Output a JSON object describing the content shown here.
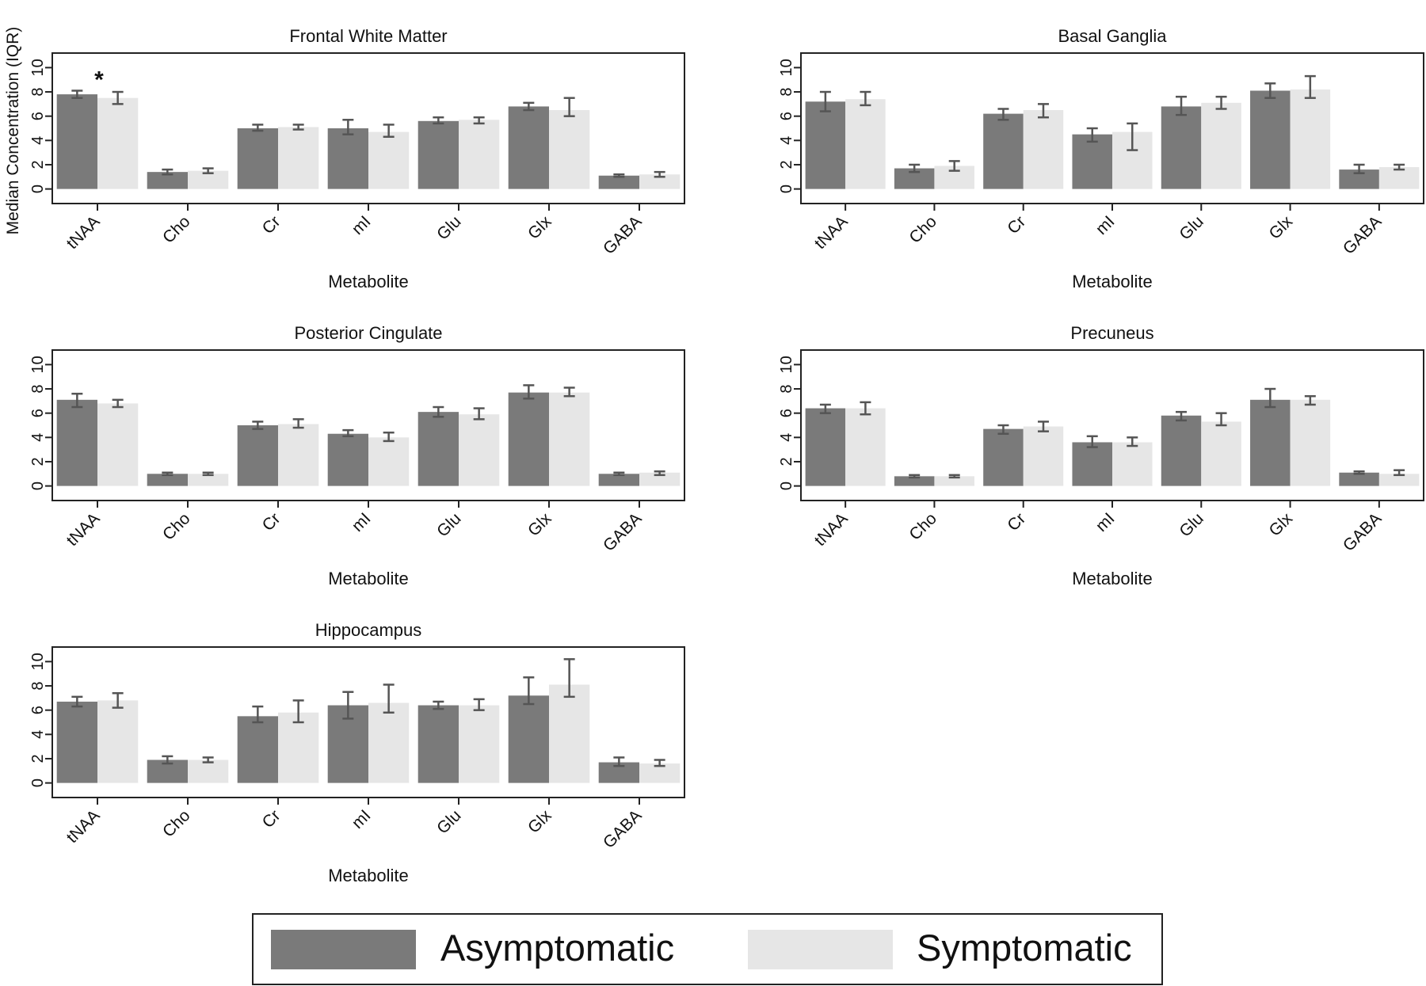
{
  "y_axis_label": "Median Concentration (IQR)",
  "colors": {
    "asymptomatic": "#7a7a7a",
    "symptomatic": "#e6e6e6",
    "errorbar": "#555555",
    "axis": "#222222"
  },
  "legend": {
    "asymptomatic": "Asymptomatic",
    "symptomatic": "Symptomatic"
  },
  "chart_data": [
    {
      "type": "bar",
      "title": "Frontal White Matter",
      "xlabel": "Metabolite",
      "ylabel": "Median Concentration (IQR)",
      "categories": [
        "tNAA",
        "Cho",
        "Cr",
        "mI",
        "Glu",
        "Glx",
        "GABA"
      ],
      "yticks": [
        "0",
        "2",
        "4",
        "6",
        "8",
        "10"
      ],
      "ylim": [
        -1.2,
        11.2
      ],
      "annotations": [
        {
          "category": "tNAA",
          "text": "*"
        }
      ],
      "series": [
        {
          "name": "Asymptomatic",
          "values": [
            7.8,
            1.4,
            5.0,
            5.0,
            5.6,
            6.8,
            1.1
          ],
          "err_low": [
            7.5,
            1.2,
            4.8,
            4.5,
            5.4,
            6.5,
            1.0
          ],
          "err_high": [
            8.1,
            1.6,
            5.3,
            5.7,
            5.9,
            7.1,
            1.2
          ]
        },
        {
          "name": "Symptomatic",
          "values": [
            7.5,
            1.5,
            5.1,
            4.7,
            5.7,
            6.5,
            1.2
          ],
          "err_low": [
            7.0,
            1.3,
            4.9,
            4.3,
            5.4,
            6.0,
            1.0
          ],
          "err_high": [
            8.0,
            1.7,
            5.3,
            5.3,
            5.9,
            7.5,
            1.4
          ]
        }
      ]
    },
    {
      "type": "bar",
      "title": "Basal Ganglia",
      "xlabel": "Metabolite",
      "ylabel": "",
      "categories": [
        "tNAA",
        "Cho",
        "Cr",
        "mI",
        "Glu",
        "Glx",
        "GABA"
      ],
      "yticks": [
        "0",
        "2",
        "4",
        "6",
        "8",
        "10"
      ],
      "ylim": [
        -1.2,
        11.2
      ],
      "series": [
        {
          "name": "Asymptomatic",
          "values": [
            7.2,
            1.7,
            6.2,
            4.5,
            6.8,
            8.1,
            1.6
          ],
          "err_low": [
            6.4,
            1.4,
            5.7,
            3.9,
            6.1,
            7.5,
            1.3
          ],
          "err_high": [
            8.0,
            2.0,
            6.6,
            5.0,
            7.6,
            8.7,
            2.0
          ]
        },
        {
          "name": "Symptomatic",
          "values": [
            7.4,
            1.9,
            6.5,
            4.7,
            7.1,
            8.2,
            1.8
          ],
          "err_low": [
            6.9,
            1.5,
            5.9,
            3.2,
            6.6,
            7.5,
            1.6
          ],
          "err_high": [
            8.0,
            2.3,
            7.0,
            5.4,
            7.6,
            9.3,
            2.0
          ]
        }
      ]
    },
    {
      "type": "bar",
      "title": "Posterior Cingulate",
      "xlabel": "Metabolite",
      "ylabel": "",
      "categories": [
        "tNAA",
        "Cho",
        "Cr",
        "mI",
        "Glu",
        "Glx",
        "GABA"
      ],
      "yticks": [
        "0",
        "2",
        "4",
        "6",
        "8",
        "10"
      ],
      "ylim": [
        -1.2,
        11.2
      ],
      "series": [
        {
          "name": "Asymptomatic",
          "values": [
            7.1,
            1.0,
            5.0,
            4.3,
            6.1,
            7.7,
            1.0
          ],
          "err_low": [
            6.5,
            0.9,
            4.7,
            4.1,
            5.7,
            7.2,
            0.9
          ],
          "err_high": [
            7.6,
            1.1,
            5.3,
            4.6,
            6.5,
            8.3,
            1.1
          ]
        },
        {
          "name": "Symptomatic",
          "values": [
            6.8,
            1.0,
            5.1,
            4.0,
            5.9,
            7.7,
            1.1
          ],
          "err_low": [
            6.5,
            0.9,
            4.8,
            3.7,
            5.5,
            7.4,
            0.9
          ],
          "err_high": [
            7.1,
            1.1,
            5.5,
            4.4,
            6.4,
            8.1,
            1.2
          ]
        }
      ]
    },
    {
      "type": "bar",
      "title": "Precuneus",
      "xlabel": "Metabolite",
      "ylabel": "",
      "categories": [
        "tNAA",
        "Cho",
        "Cr",
        "mI",
        "Glu",
        "Glx",
        "GABA"
      ],
      "yticks": [
        "0",
        "2",
        "4",
        "6",
        "8",
        "10"
      ],
      "ylim": [
        -1.2,
        11.2
      ],
      "series": [
        {
          "name": "Asymptomatic",
          "values": [
            6.4,
            0.8,
            4.7,
            3.6,
            5.8,
            7.1,
            1.1
          ],
          "err_low": [
            6.0,
            0.7,
            4.3,
            3.2,
            5.4,
            6.5,
            1.0
          ],
          "err_high": [
            6.7,
            0.9,
            5.0,
            4.1,
            6.1,
            8.0,
            1.2
          ]
        },
        {
          "name": "Symptomatic",
          "values": [
            6.4,
            0.8,
            4.9,
            3.6,
            5.3,
            7.1,
            1.0
          ],
          "err_low": [
            5.9,
            0.7,
            4.5,
            3.3,
            5.0,
            6.7,
            0.9
          ],
          "err_high": [
            6.9,
            0.9,
            5.3,
            4.0,
            6.0,
            7.4,
            1.3
          ]
        }
      ]
    },
    {
      "type": "bar",
      "title": "Hippocampus",
      "xlabel": "Metabolite",
      "ylabel": "",
      "categories": [
        "tNAA",
        "Cho",
        "Cr",
        "mI",
        "Glu",
        "Glx",
        "GABA"
      ],
      "yticks": [
        "0",
        "2",
        "4",
        "6",
        "8",
        "10"
      ],
      "ylim": [
        -1.2,
        11.2
      ],
      "series": [
        {
          "name": "Asymptomatic",
          "values": [
            6.7,
            1.9,
            5.5,
            6.4,
            6.4,
            7.2,
            1.7
          ],
          "err_low": [
            6.3,
            1.6,
            5.0,
            5.3,
            6.1,
            6.5,
            1.4
          ],
          "err_high": [
            7.1,
            2.2,
            6.3,
            7.5,
            6.7,
            8.7,
            2.1
          ]
        },
        {
          "name": "Symptomatic",
          "values": [
            6.8,
            1.9,
            5.8,
            6.6,
            6.4,
            8.1,
            1.6
          ],
          "err_low": [
            6.2,
            1.7,
            5.0,
            5.8,
            6.0,
            7.1,
            1.4
          ],
          "err_high": [
            7.4,
            2.1,
            6.8,
            8.1,
            6.9,
            10.2,
            1.9
          ]
        }
      ]
    }
  ]
}
